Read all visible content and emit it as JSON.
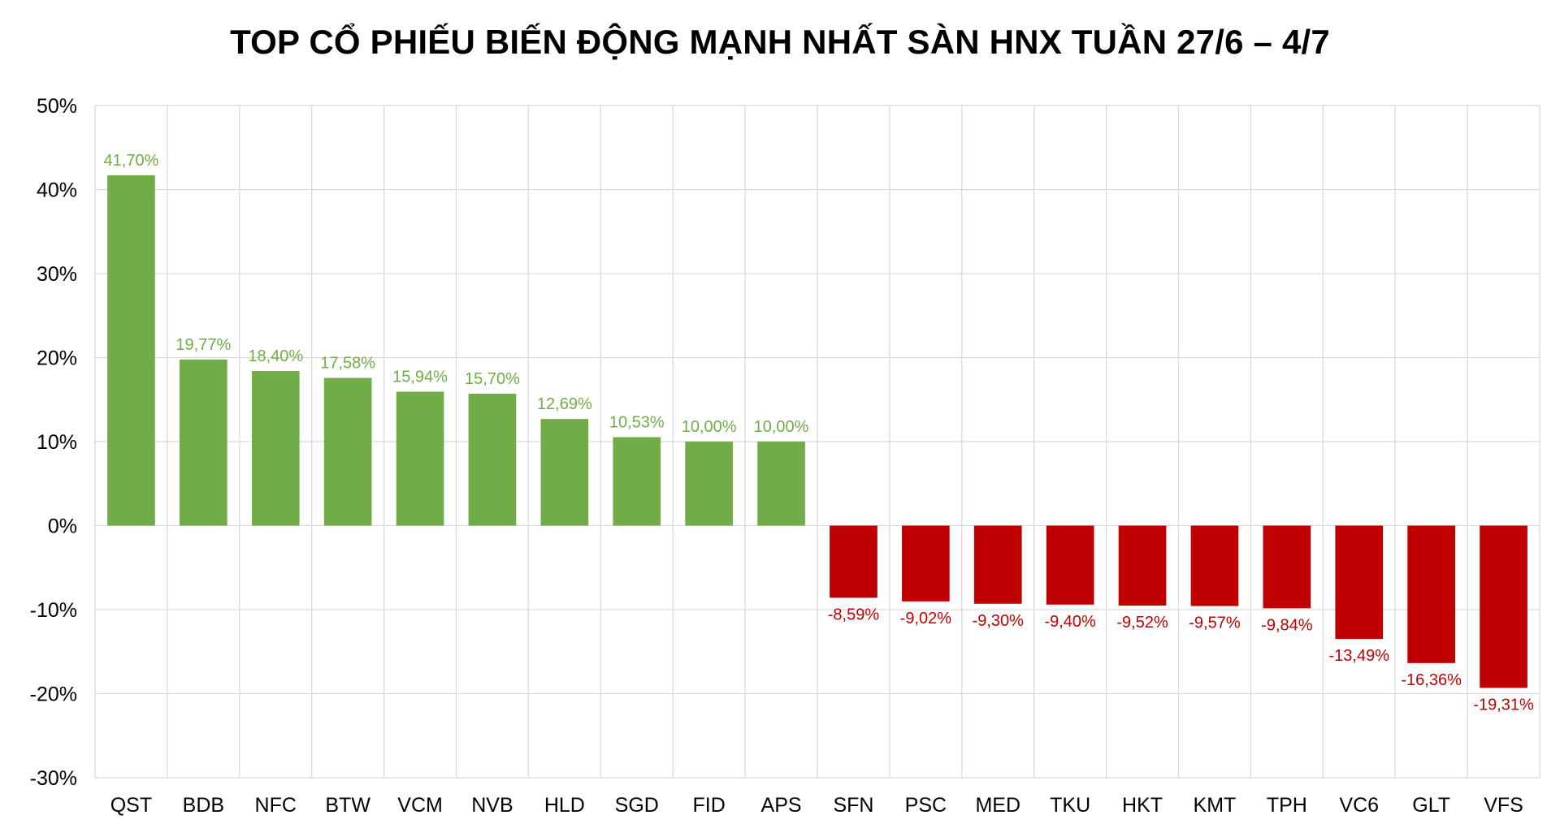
{
  "chart_data": {
    "type": "bar",
    "title": "TOP CỔ PHIẾU BIẾN ĐỘNG MẠNH NHẤT SÀN HNX TUẦN 27/6 – 4/7",
    "xlabel": "",
    "ylabel": "",
    "categories": [
      "QST",
      "BDB",
      "NFC",
      "BTW",
      "VCM",
      "NVB",
      "HLD",
      "SGD",
      "FID",
      "APS",
      "SFN",
      "PSC",
      "MED",
      "TKU",
      "HKT",
      "KMT",
      "TPH",
      "VC6",
      "GLT",
      "VFS"
    ],
    "values": [
      41.7,
      19.77,
      18.4,
      17.58,
      15.94,
      15.7,
      12.69,
      10.53,
      10.0,
      10.0,
      -8.59,
      -9.02,
      -9.3,
      -9.4,
      -9.52,
      -9.57,
      -9.84,
      -13.49,
      -16.36,
      -19.31
    ],
    "data_labels": [
      "41,70%",
      "19,77%",
      "18,40%",
      "17,58%",
      "15,94%",
      "15,70%",
      "12,69%",
      "10,53%",
      "10,00%",
      "10,00%",
      "-8,59%",
      "-9,02%",
      "-9,30%",
      "-9,40%",
      "-9,52%",
      "-9,57%",
      "-9,84%",
      "-13,49%",
      "-16,36%",
      "-19,31%"
    ],
    "y_ticks": [
      50,
      40,
      30,
      20,
      10,
      0,
      -10,
      -20,
      -30
    ],
    "y_tick_labels": [
      "50%",
      "40%",
      "30%",
      "20%",
      "10%",
      "0%",
      "-10%",
      "-20%",
      "-30%"
    ],
    "ylim": [
      -30,
      50
    ],
    "grid": true,
    "legend": "none",
    "colors": {
      "positive": "#70AD47",
      "negative": "#C00000",
      "grid": "#D9D9D9",
      "text": "#000000"
    }
  }
}
